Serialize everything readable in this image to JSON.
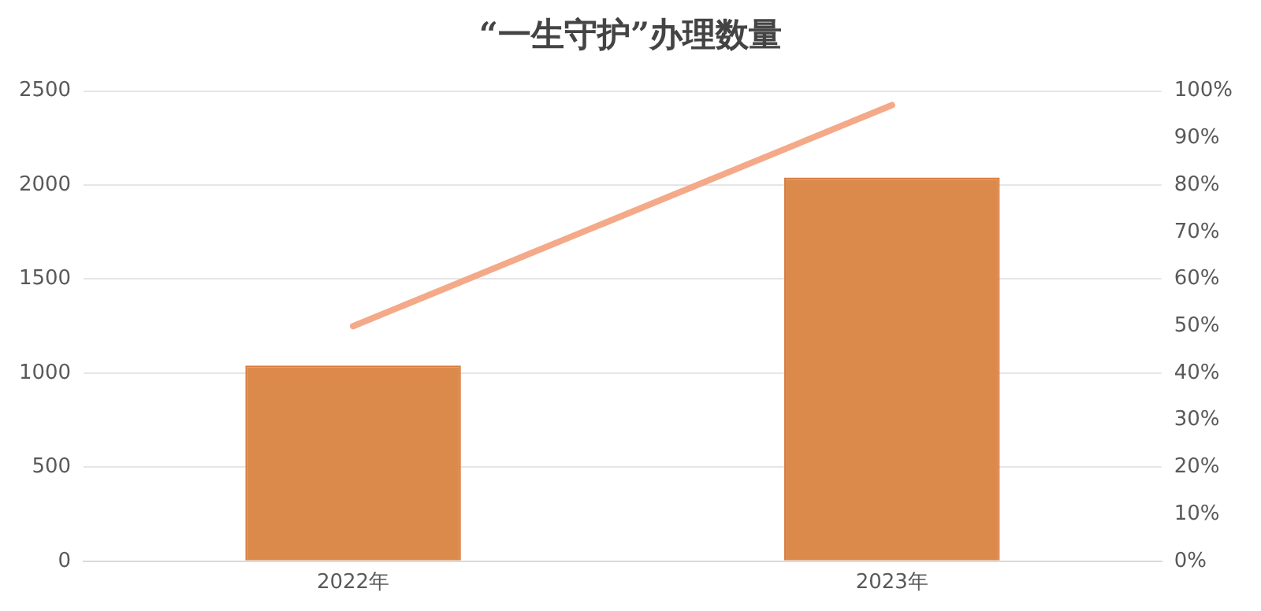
{
  "chart_data": {
    "type": "bar",
    "title": "“一生守护”办理数量",
    "categories": [
      "2022年",
      "2023年"
    ],
    "series": [
      {
        "color": "#dc8a4c",
        "values": [
          1040,
          2040
        ]
      },
      {
        "type": "line",
        "axis": "y2",
        "color": "#f4a988",
        "values": [
          50,
          97
        ]
      }
    ],
    "ylim": [
      0,
      2500
    ],
    "yticks": [
      0,
      500,
      1000,
      1500,
      2000,
      2500
    ],
    "y2lim": [
      0,
      100
    ],
    "y2ticks": [
      {
        "value": 0,
        "label": "0%"
      },
      {
        "value": 10,
        "label": "10%"
      },
      {
        "value": 20,
        "label": "20%"
      },
      {
        "value": 30,
        "label": "30%"
      },
      {
        "value": 40,
        "label": "40%"
      },
      {
        "value": 50,
        "label": "50%"
      },
      {
        "value": 60,
        "label": "60%"
      },
      {
        "value": 70,
        "label": "70%"
      },
      {
        "value": 80,
        "label": "80%"
      },
      {
        "value": 90,
        "label": "90%"
      },
      {
        "value": 100,
        "label": "100%"
      }
    ],
    "grid": "y",
    "marker": "none",
    "line_style": "solid"
  }
}
